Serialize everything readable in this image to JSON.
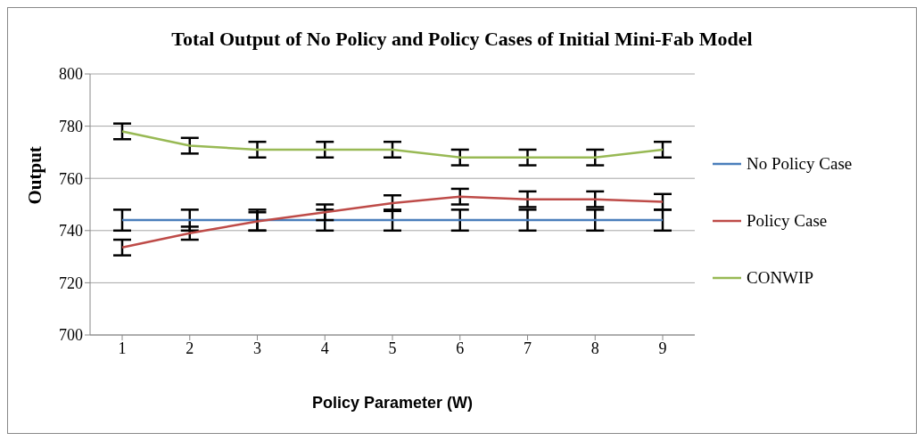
{
  "chart_data": {
    "type": "line",
    "title": "Total Output of No Policy and Policy Cases of Initial Mini-Fab Model",
    "xlabel": "Policy Parameter (W)",
    "ylabel": "Output",
    "categories": [
      "1",
      "2",
      "3",
      "4",
      "5",
      "6",
      "7",
      "8",
      "9"
    ],
    "series": [
      {
        "name": "No Policy Case",
        "color": "#4a7ebb",
        "values": [
          744,
          744,
          744,
          744,
          744,
          744,
          744,
          744,
          744
        ],
        "errors": [
          4,
          4,
          4,
          4,
          4,
          4,
          4,
          4,
          4
        ]
      },
      {
        "name": "Policy Case",
        "color": "#be4b48",
        "values": [
          733.5,
          739,
          743.5,
          747,
          750.5,
          753,
          752,
          752,
          751
        ],
        "errors": [
          3,
          2.5,
          3.5,
          3,
          3,
          3,
          3,
          3,
          3
        ]
      },
      {
        "name": "CONWIP",
        "color": "#98b954",
        "values": [
          778,
          772.5,
          771,
          771,
          771,
          768,
          768,
          768,
          771
        ],
        "errors": [
          3,
          3,
          3,
          3,
          3,
          3,
          3,
          3,
          3
        ]
      }
    ],
    "ylim": [
      700,
      800
    ],
    "yticks": [
      700,
      720,
      740,
      760,
      780,
      800
    ],
    "grid": "y",
    "legend": "right",
    "marker": "none",
    "line_style": "solid"
  }
}
